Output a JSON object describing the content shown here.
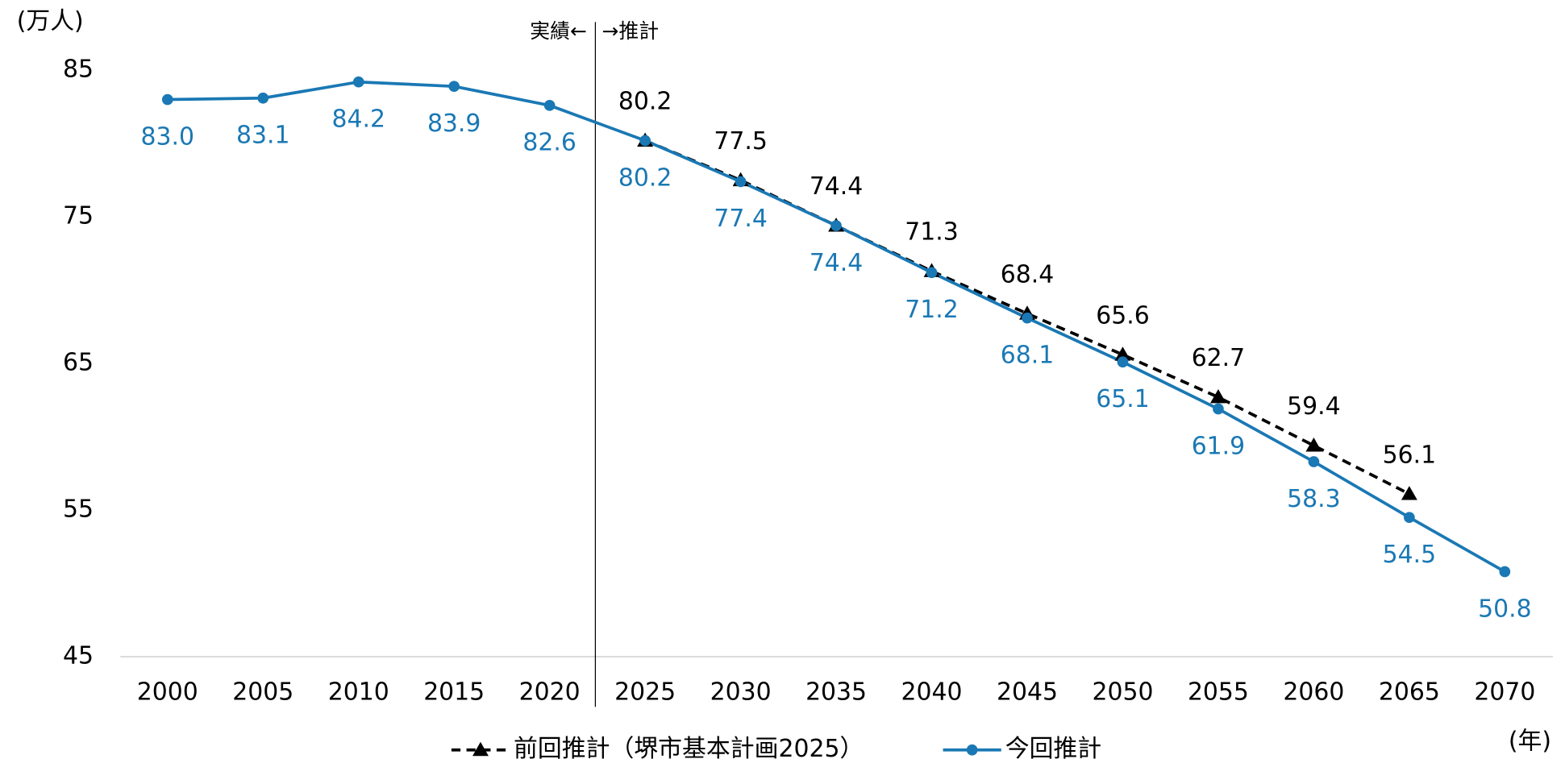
{
  "chart_data": {
    "type": "line",
    "y_label": "(万人)",
    "x_label": "(年)",
    "annotations": [
      "実績←",
      "→推計"
    ],
    "categories": [
      "2000",
      "2005",
      "2010",
      "2015",
      "2020",
      "2025",
      "2030",
      "2035",
      "2040",
      "2045",
      "2050",
      "2055",
      "2060",
      "2065",
      "2070"
    ],
    "series": [
      {
        "name": "前回推計（堺市基本計画2025）",
        "color": "#000000",
        "dashed": true,
        "marker": "triangle",
        "values": [
          null,
          null,
          null,
          null,
          null,
          80.2,
          77.5,
          74.4,
          71.3,
          68.4,
          65.6,
          62.7,
          59.4,
          56.1,
          null
        ],
        "value_labels": [
          null,
          null,
          null,
          null,
          null,
          "80.2",
          "77.5",
          "74.4",
          "71.3",
          "68.4",
          "65.6",
          "62.7",
          "59.4",
          "56.1",
          null
        ]
      },
      {
        "name": "今回推計",
        "color": "#1a78b4",
        "dashed": false,
        "marker": "circle",
        "values": [
          83.0,
          83.1,
          84.2,
          83.9,
          82.6,
          80.2,
          77.4,
          74.4,
          71.2,
          68.1,
          65.1,
          61.9,
          58.3,
          54.5,
          50.8
        ],
        "value_labels": [
          "83.0",
          "83.1",
          "84.2",
          "83.9",
          "82.6",
          "80.2",
          "77.4",
          "74.4",
          "71.2",
          "68.1",
          "65.1",
          "61.9",
          "58.3",
          "54.5",
          "50.8"
        ]
      }
    ],
    "ylim": [
      45,
      85
    ],
    "yticks": [
      45,
      55,
      65,
      75,
      85
    ],
    "grid": false,
    "legend": "bottom"
  }
}
